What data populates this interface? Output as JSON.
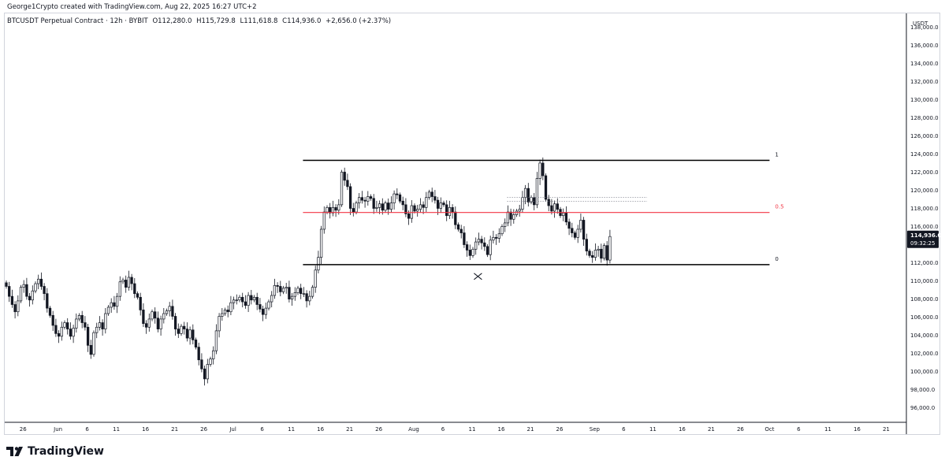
{
  "header": {
    "credit": "George1Crypto created with TradingView.com, Aug 22, 2025 16:27 UTC+2",
    "symbol": "BTCUSDT Perpetual Contract · 12h · BYBIT",
    "open": "O112,280.0",
    "high": "H115,729.8",
    "low": "L111,618.8",
    "close": "C114,936.0",
    "change": "+2,656.0 (+2.37%)"
  },
  "price_axis": {
    "currency": "USDT",
    "last_price": "114,936.0",
    "countdown": "09:32:25"
  },
  "brand": {
    "name": "TradingView"
  },
  "colors": {
    "up": "#131722",
    "down": "#131722",
    "range_line": "#000000",
    "mid_line": "#f23645",
    "mid_label": "#f23645",
    "price_tag_bg": "#131722"
  },
  "chart_data": {
    "type": "candlestick",
    "timeframe": "12h",
    "ylim": [
      94500,
      139500
    ],
    "y_ticks": [
      96000,
      98000,
      100000,
      102000,
      104000,
      106000,
      108000,
      110000,
      112000,
      114000,
      116000,
      118000,
      120000,
      122000,
      124000,
      126000,
      128000,
      130000,
      132000,
      134000,
      136000,
      138000
    ],
    "y_tick_labels": [
      "96,000.0",
      "98,000.0",
      "100,000.0",
      "102,000.0",
      "104,000.0",
      "106,000.0",
      "108,000.0",
      "110,000.0",
      "112,000.0",
      "114,000.0",
      "116,000.0",
      "118,000.0",
      "120,000.0",
      "122,000.0",
      "124,000.0",
      "126,000.0",
      "128,000.0",
      "130,000.0",
      "132,000.0",
      "134,000.0",
      "136,000.0",
      "138,000.0"
    ],
    "x_start": "2025-05-23",
    "x_ticks": [
      {
        "label": "26",
        "date": "2025-05-26"
      },
      {
        "label": "Jun",
        "date": "2025-06-01"
      },
      {
        "label": "6",
        "date": "2025-06-06"
      },
      {
        "label": "11",
        "date": "2025-06-11"
      },
      {
        "label": "16",
        "date": "2025-06-16"
      },
      {
        "label": "21",
        "date": "2025-06-21"
      },
      {
        "label": "26",
        "date": "2025-06-26"
      },
      {
        "label": "Jul",
        "date": "2025-07-01"
      },
      {
        "label": "6",
        "date": "2025-07-06"
      },
      {
        "label": "11",
        "date": "2025-07-11"
      },
      {
        "label": "16",
        "date": "2025-07-16"
      },
      {
        "label": "21",
        "date": "2025-07-21"
      },
      {
        "label": "26",
        "date": "2025-07-26"
      },
      {
        "label": "Aug",
        "date": "2025-08-01"
      },
      {
        "label": "6",
        "date": "2025-08-06"
      },
      {
        "label": "11",
        "date": "2025-08-11"
      },
      {
        "label": "16",
        "date": "2025-08-16"
      },
      {
        "label": "21",
        "date": "2025-08-21"
      },
      {
        "label": "26",
        "date": "2025-08-26"
      },
      {
        "label": "Sep",
        "date": "2025-09-01"
      },
      {
        "label": "6",
        "date": "2025-09-06"
      },
      {
        "label": "11",
        "date": "2025-09-11"
      },
      {
        "label": "16",
        "date": "2025-09-16"
      },
      {
        "label": "21",
        "date": "2025-09-21"
      },
      {
        "label": "26",
        "date": "2025-09-26"
      },
      {
        "label": "Oct",
        "date": "2025-10-01"
      },
      {
        "label": "6",
        "date": "2025-10-06"
      },
      {
        "label": "11",
        "date": "2025-10-11"
      },
      {
        "label": "16",
        "date": "2025-10-16"
      },
      {
        "label": "21",
        "date": "2025-10-21"
      }
    ],
    "candle_closes": [
      109400,
      108300,
      107400,
      106600,
      107800,
      109300,
      109600,
      108300,
      107900,
      108900,
      109700,
      110200,
      109400,
      108600,
      107000,
      106200,
      105100,
      104200,
      103900,
      104900,
      105400,
      104700,
      103900,
      104800,
      105800,
      106200,
      105400,
      104900,
      102900,
      101900,
      104300,
      104900,
      105400,
      104700,
      106400,
      107100,
      107600,
      107200,
      108300,
      109900,
      110100,
      109300,
      110400,
      109700,
      108600,
      108200,
      106800,
      105300,
      104900,
      105800,
      106600,
      105900,
      104700,
      105800,
      106400,
      106700,
      107200,
      106100,
      104700,
      104200,
      105000,
      104700,
      103700,
      104600,
      103500,
      102700,
      101300,
      100300,
      99200,
      100800,
      101400,
      102300,
      104500,
      106100,
      106400,
      106800,
      106600,
      107600,
      107900,
      107900,
      108200,
      107700,
      107300,
      108400,
      107900,
      108200,
      107400,
      106900,
      106300,
      107000,
      107700,
      108400,
      109500,
      109400,
      108800,
      109200,
      109300,
      108000,
      108300,
      108700,
      109200,
      108600,
      108600,
      107800,
      108300,
      109300,
      111200,
      112600,
      115700,
      117600,
      118100,
      117500,
      118100,
      117800,
      118400,
      122000,
      121100,
      120400,
      118000,
      117600,
      118600,
      119200,
      118900,
      118800,
      119300,
      119100,
      118000,
      118100,
      118500,
      117800,
      118600,
      117900,
      118600,
      119600,
      119500,
      118800,
      118400,
      117400,
      116900,
      118300,
      117700,
      117900,
      118400,
      118100,
      119200,
      119800,
      119300,
      118900,
      118000,
      118600,
      118400,
      117200,
      118100,
      117600,
      116200,
      115700,
      115300,
      114000,
      113400,
      112800,
      113500,
      114300,
      114600,
      114200,
      113800,
      112900,
      114500,
      114800,
      114700,
      115200,
      116000,
      116400,
      117600,
      116800,
      117300,
      117700,
      117900,
      119200,
      120200,
      118700,
      119200,
      118400,
      121300,
      123000,
      121600,
      119000,
      118300,
      117700,
      118500,
      117900,
      117200,
      117500,
      116500,
      115800,
      115300,
      114800,
      115700,
      116700,
      114600,
      113300,
      112800,
      112600,
      113400,
      113500,
      112500,
      113900,
      112300,
      114900
    ],
    "range_levels": [
      {
        "label": "1",
        "value": 123300
      },
      {
        "label": "0.5",
        "value": 117550
      },
      {
        "label": "0",
        "value": 111800
      }
    ],
    "dotted_levels": [
      119200,
      118800
    ],
    "range_start": "2025-07-13",
    "range_end": "2025-10-01",
    "dotted_start": "2025-08-17",
    "dotted_end": "2025-09-10",
    "cross_marker": {
      "date": "2025-08-12",
      "value": 110500
    }
  }
}
